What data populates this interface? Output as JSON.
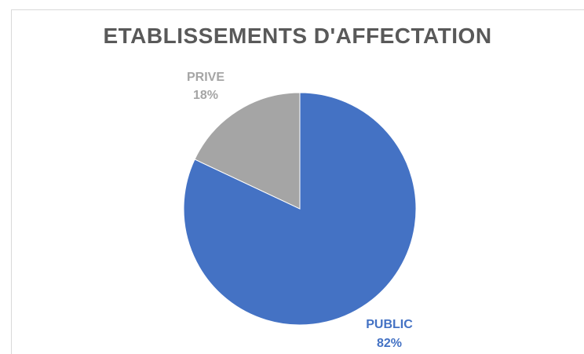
{
  "chart_data": {
    "type": "pie",
    "title": "ETABLISSEMENTS D'AFFECTATION",
    "slices": [
      {
        "label": "PUBLIC",
        "value": 82,
        "value_label": "82%",
        "color": "#4472c4"
      },
      {
        "label": "PRIVE",
        "value": 18,
        "value_label": "18%",
        "color": "#a5a5a5"
      }
    ],
    "legend": "none"
  }
}
